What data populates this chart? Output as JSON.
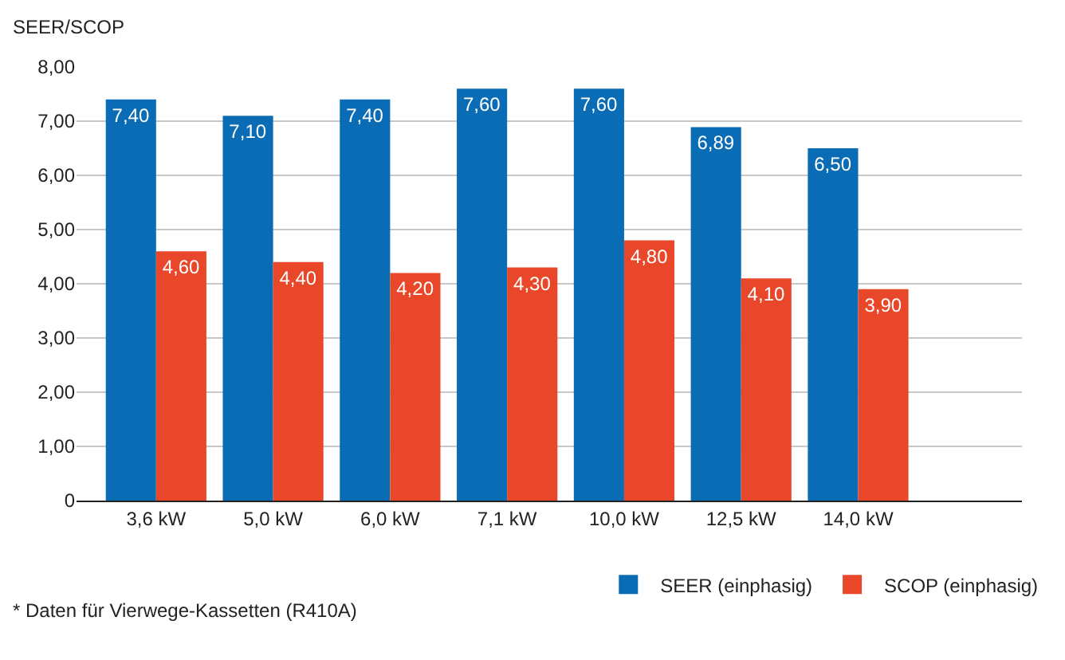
{
  "chart_data": {
    "type": "bar",
    "ylabel": "SEER/SCOP",
    "categories": [
      "3,6 kW",
      "5,0 kW",
      "6,0 kW",
      "7,1 kW",
      "10,0 kW",
      "12,5 kW",
      "14,0 kW"
    ],
    "series": [
      {
        "name": "SEER (einphasig)",
        "color": "#0a6cb5",
        "values": [
          7.4,
          7.1,
          7.4,
          7.6,
          7.6,
          6.89,
          6.5
        ],
        "value_labels": [
          "7,40",
          "7,10",
          "7,40",
          "7,60",
          "7,60",
          "6,89",
          "6,50"
        ]
      },
      {
        "name": "SCOP (einphasig)",
        "color": "#e8472a",
        "values": [
          4.6,
          4.4,
          4.2,
          4.3,
          4.8,
          4.1,
          3.9
        ],
        "value_labels": [
          "4,60",
          "4,40",
          "4,20",
          "4,30",
          "4,80",
          "4,10",
          "3,90"
        ]
      }
    ],
    "ylim": [
      0,
      8
    ],
    "yticks": [
      {
        "value": 0,
        "label": "0"
      },
      {
        "value": 1,
        "label": "1,00"
      },
      {
        "value": 2,
        "label": "2,00"
      },
      {
        "value": 3,
        "label": "3,00"
      },
      {
        "value": 4,
        "label": "4,00"
      },
      {
        "value": 5,
        "label": "5,00"
      },
      {
        "value": 6,
        "label": "6,00"
      },
      {
        "value": 7,
        "label": "7,00"
      },
      {
        "value": 8,
        "label": "8,00"
      }
    ],
    "grid": "y",
    "legend": "bottom right",
    "annotations": [
      "* Daten für Vierwege-Kassetten (R410A)"
    ]
  }
}
